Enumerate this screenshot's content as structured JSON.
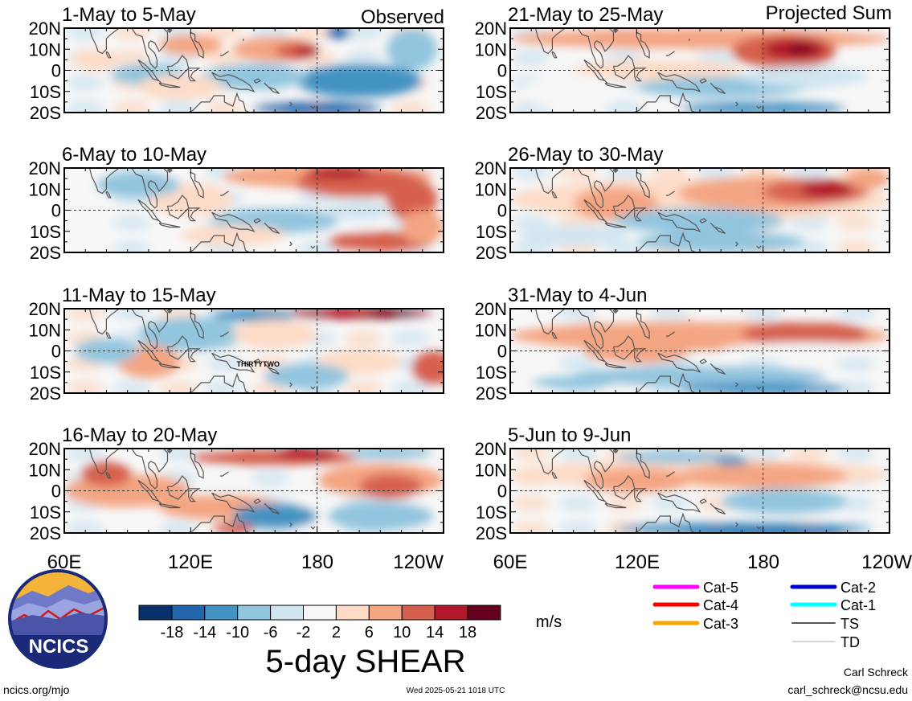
{
  "header": {
    "left_column_label": "Observed",
    "right_column_label": "Projected Sum"
  },
  "panels": {
    "left": [
      {
        "title": "1-May to 5-May"
      },
      {
        "title": "6-May to 10-May"
      },
      {
        "title": "11-May to 15-May",
        "storm_label": "THIRTYTWO"
      },
      {
        "title": "16-May to 20-May"
      }
    ],
    "right": [
      {
        "title": "21-May to 25-May"
      },
      {
        "title": "26-May to 30-May"
      },
      {
        "title": "31-May to 4-Jun"
      },
      {
        "title": "5-Jun to 9-Jun"
      }
    ]
  },
  "chart_data": {
    "type": "heatmap",
    "variable": "5-day SHEAR",
    "units": "m/s",
    "y_ticks": [
      "20N",
      "10N",
      "0",
      "10S",
      "20S"
    ],
    "x_ticks": [
      "60E",
      "120E",
      "180",
      "120W"
    ],
    "x_ticks_right": [
      "60E",
      "120E",
      "180",
      "120W"
    ],
    "ylim": [
      -20,
      20
    ],
    "xlim": [
      60,
      240
    ],
    "colorbar": {
      "levels": [
        "-18",
        "-14",
        "-10",
        "-6",
        "-2",
        "2",
        "6",
        "10",
        "14",
        "18"
      ],
      "colors": [
        "#08306b",
        "#2166ac",
        "#4393c3",
        "#92c5de",
        "#d1e5f0",
        "#f7f7f7",
        "#fddbc7",
        "#f4a582",
        "#d6604d",
        "#b2182b",
        "#67001f"
      ]
    }
  },
  "legend": {
    "items": [
      {
        "label": "Cat-5",
        "color": "#ff00ff"
      },
      {
        "label": "Cat-4",
        "color": "#ff0000"
      },
      {
        "label": "Cat-3",
        "color": "#ffa500"
      },
      {
        "label": "Cat-2",
        "color": "#0000cd"
      },
      {
        "label": "Cat-1",
        "color": "#00ffff"
      },
      {
        "label": "TS",
        "color": "#555555"
      },
      {
        "label": "TD",
        "color": "#aaaaaa"
      }
    ]
  },
  "footer": {
    "logo_text": "NCICS",
    "website": "ncics.org/mjo",
    "timestamp": "Wed 2025-05-21 1018 UTC",
    "author": "Carl Schreck",
    "email": "carl_schreck@ncsu.edu",
    "title": "5-day SHEAR",
    "units": "m/s"
  }
}
